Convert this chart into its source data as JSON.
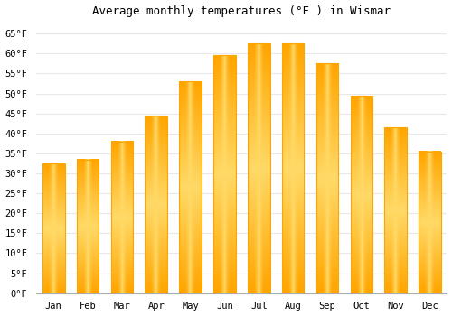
{
  "title": "Average monthly temperatures (°F ) in Wismar",
  "months": [
    "Jan",
    "Feb",
    "Mar",
    "Apr",
    "May",
    "Jun",
    "Jul",
    "Aug",
    "Sep",
    "Oct",
    "Nov",
    "Dec"
  ],
  "values": [
    32.5,
    33.5,
    38,
    44.5,
    53,
    59.5,
    62.5,
    62.5,
    57.5,
    49.5,
    41.5,
    35.5
  ],
  "bar_color_center": "#FFD966",
  "bar_color_edge": "#FFA500",
  "background_color": "#FFFFFF",
  "ytick_labels": [
    "0°F",
    "5°F",
    "10°F",
    "15°F",
    "20°F",
    "25°F",
    "30°F",
    "35°F",
    "40°F",
    "45°F",
    "50°F",
    "55°F",
    "60°F",
    "65°F"
  ],
  "ytick_values": [
    0,
    5,
    10,
    15,
    20,
    25,
    30,
    35,
    40,
    45,
    50,
    55,
    60,
    65
  ],
  "ylim": [
    0,
    68
  ],
  "grid_color": "#E8E8E8",
  "title_fontsize": 9,
  "tick_fontsize": 7.5,
  "font_family": "monospace",
  "bar_width": 0.65
}
